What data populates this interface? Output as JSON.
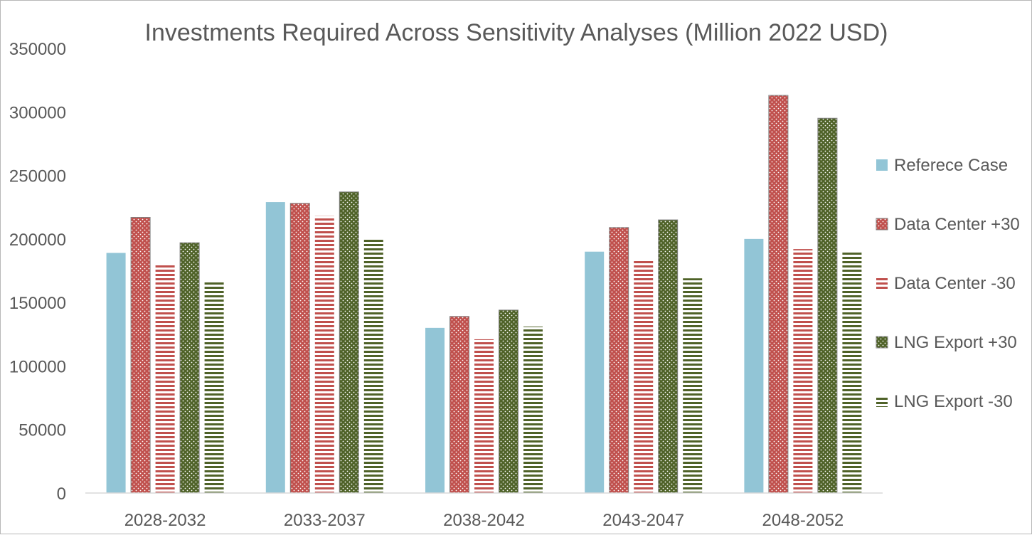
{
  "chart_data": {
    "type": "bar",
    "title": "Investments Required Across Sensitivity Analyses (Million 2022 USD)",
    "xlabel": "",
    "ylabel": "",
    "ylim": [
      0,
      350000
    ],
    "y_ticks": [
      0,
      50000,
      100000,
      150000,
      200000,
      250000,
      300000,
      350000
    ],
    "y_tick_labels": [
      "0",
      "50000",
      "100000",
      "150000",
      "200000",
      "250000",
      "300000",
      "350000"
    ],
    "grid": false,
    "legend_position": "right",
    "categories": [
      "2028-2032",
      "2033-2037",
      "2038-2042",
      "2043-2047",
      "2048-2052"
    ],
    "series": [
      {
        "name": "Referece Case",
        "pattern": "solid",
        "color": "#92C5D6",
        "values": [
          189000,
          229000,
          130000,
          190000,
          200000
        ]
      },
      {
        "name": "Data Center +30",
        "pattern": "dotted",
        "color": "#C0504D",
        "values": [
          217000,
          228000,
          139000,
          209000,
          313000
        ]
      },
      {
        "name": "Data Center -30",
        "pattern": "horizontal-stripes",
        "color": "#C0504D",
        "values": [
          180000,
          218000,
          121000,
          183000,
          192000
        ]
      },
      {
        "name": "LNG Export +30",
        "pattern": "dotted",
        "color": "#4F6228",
        "values": [
          197000,
          237000,
          144000,
          215000,
          295000
        ]
      },
      {
        "name": "LNG Export -30",
        "pattern": "horizontal-stripes",
        "color": "#4F6228",
        "values": [
          166000,
          201000,
          131000,
          169000,
          190000
        ]
      }
    ]
  }
}
